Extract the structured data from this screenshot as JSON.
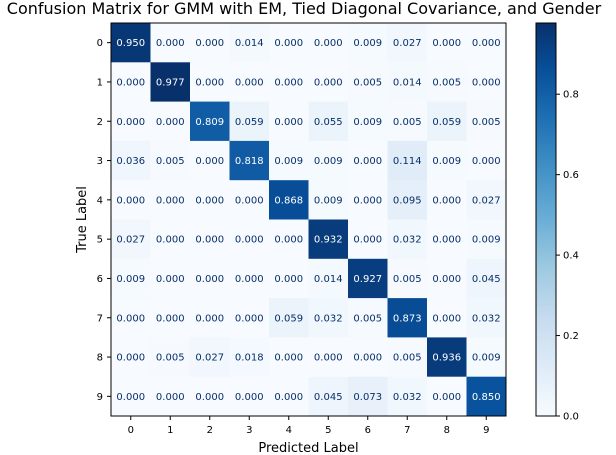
{
  "chart_data": {
    "type": "heatmap",
    "title": "Confusion Matrix for GMM with EM, Tied Diagonal Covariance, and Gender",
    "xlabel": "Predicted Label",
    "ylabel": "True Label",
    "x_categories": [
      "0",
      "1",
      "2",
      "3",
      "4",
      "5",
      "6",
      "7",
      "8",
      "9"
    ],
    "y_categories": [
      "0",
      "1",
      "2",
      "3",
      "4",
      "5",
      "6",
      "7",
      "8",
      "9"
    ],
    "matrix": [
      [
        0.95,
        0.0,
        0.0,
        0.014,
        0.0,
        0.0,
        0.009,
        0.027,
        0.0,
        0.0
      ],
      [
        0.0,
        0.977,
        0.0,
        0.0,
        0.0,
        0.0,
        0.005,
        0.014,
        0.005,
        0.0
      ],
      [
        0.0,
        0.0,
        0.809,
        0.059,
        0.0,
        0.055,
        0.009,
        0.005,
        0.059,
        0.005
      ],
      [
        0.036,
        0.005,
        0.0,
        0.818,
        0.009,
        0.009,
        0.0,
        0.114,
        0.009,
        0.0
      ],
      [
        0.0,
        0.0,
        0.0,
        0.0,
        0.868,
        0.009,
        0.0,
        0.095,
        0.0,
        0.027
      ],
      [
        0.027,
        0.0,
        0.0,
        0.0,
        0.0,
        0.932,
        0.0,
        0.032,
        0.0,
        0.009
      ],
      [
        0.009,
        0.0,
        0.0,
        0.0,
        0.0,
        0.014,
        0.927,
        0.005,
        0.0,
        0.045
      ],
      [
        0.0,
        0.0,
        0.0,
        0.0,
        0.059,
        0.032,
        0.005,
        0.873,
        0.0,
        0.032
      ],
      [
        0.0,
        0.005,
        0.027,
        0.018,
        0.0,
        0.0,
        0.0,
        0.005,
        0.936,
        0.009
      ],
      [
        0.0,
        0.0,
        0.0,
        0.0,
        0.0,
        0.045,
        0.073,
        0.032,
        0.0,
        0.85
      ]
    ],
    "colormap": "Blues",
    "colorbar": {
      "min": 0.0,
      "max": 0.977,
      "ticks": [
        "0.0",
        "0.2",
        "0.4",
        "0.6",
        "0.8"
      ]
    },
    "grid": false
  }
}
